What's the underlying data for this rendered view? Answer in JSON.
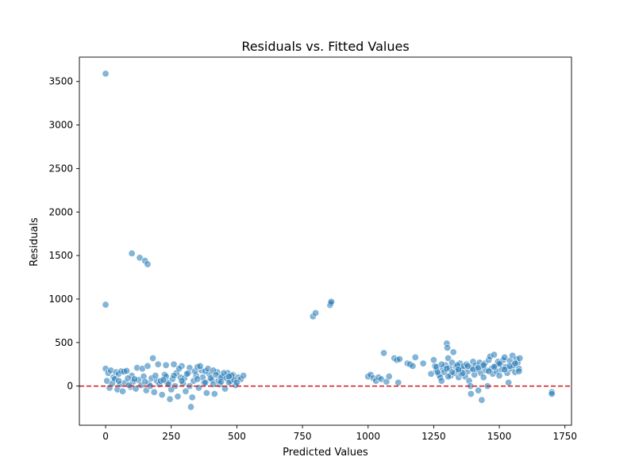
{
  "chart_data": {
    "type": "scatter",
    "title": "Residuals vs. Fitted Values",
    "xlabel": "Predicted Values",
    "ylabel": "Residuals",
    "xlim": [
      -100,
      1775
    ],
    "ylim": [
      -450,
      3780
    ],
    "x_ticks": [
      0,
      250,
      500,
      750,
      1000,
      1250,
      1500,
      1750
    ],
    "x_tick_labels": [
      "0",
      "250",
      "500",
      "750",
      "1000",
      "1250",
      "1500",
      "1750"
    ],
    "y_ticks": [
      0,
      500,
      1000,
      1500,
      2000,
      2500,
      3000,
      3500
    ],
    "y_tick_labels": [
      "0",
      "500",
      "1000",
      "1500",
      "2000",
      "2500",
      "3000",
      "3500"
    ],
    "grid": false,
    "legend": "none",
    "reference_line": {
      "y": 0,
      "style": "dashed",
      "color": "#d62728"
    },
    "marker_color": "#1f77b4",
    "marker_alpha": 0.55,
    "series": [
      {
        "name": "residuals",
        "points": [
          [
            0,
            3590
          ],
          [
            0,
            935
          ],
          [
            100,
            1525
          ],
          [
            130,
            1475
          ],
          [
            150,
            1440
          ],
          [
            160,
            1400
          ],
          [
            790,
            800
          ],
          [
            800,
            840
          ],
          [
            855,
            930
          ],
          [
            858,
            950
          ],
          [
            860,
            970
          ],
          [
            1700,
            -70
          ],
          [
            1700,
            -90
          ],
          [
            0,
            200
          ],
          [
            10,
            150
          ],
          [
            20,
            180
          ],
          [
            30,
            100
          ],
          [
            40,
            160
          ],
          [
            50,
            140
          ],
          [
            60,
            170
          ],
          [
            70,
            165
          ],
          [
            80,
            175
          ],
          [
            100,
            120
          ],
          [
            120,
            210
          ],
          [
            140,
            200
          ],
          [
            160,
            230
          ],
          [
            180,
            320
          ],
          [
            200,
            250
          ],
          [
            230,
            240
          ],
          [
            260,
            250
          ],
          [
            290,
            230
          ],
          [
            320,
            210
          ],
          [
            5,
            60
          ],
          [
            15,
            -20
          ],
          [
            25,
            30
          ],
          [
            35,
            80
          ],
          [
            45,
            -40
          ],
          [
            55,
            20
          ],
          [
            65,
            -60
          ],
          [
            75,
            40
          ],
          [
            85,
            90
          ],
          [
            95,
            -10
          ],
          [
            105,
            50
          ],
          [
            115,
            -30
          ],
          [
            125,
            70
          ],
          [
            135,
            10
          ],
          [
            145,
            110
          ],
          [
            155,
            -50
          ],
          [
            165,
            30
          ],
          [
            175,
            90
          ],
          [
            185,
            -70
          ],
          [
            195,
            60
          ],
          [
            205,
            20
          ],
          [
            215,
            -100
          ],
          [
            225,
            130
          ],
          [
            235,
            40
          ],
          [
            245,
            -150
          ],
          [
            255,
            80
          ],
          [
            265,
            0
          ],
          [
            275,
            -120
          ],
          [
            285,
            100
          ],
          [
            295,
            30
          ],
          [
            305,
            -60
          ],
          [
            315,
            150
          ],
          [
            325,
            -240
          ],
          [
            330,
            -130
          ],
          [
            335,
            60
          ],
          [
            345,
            120
          ],
          [
            355,
            -20
          ],
          [
            365,
            180
          ],
          [
            375,
            40
          ],
          [
            385,
            -80
          ],
          [
            395,
            140
          ],
          [
            405,
            70
          ],
          [
            415,
            -90
          ],
          [
            425,
            160
          ],
          [
            435,
            20
          ],
          [
            445,
            110
          ],
          [
            455,
            -30
          ],
          [
            465,
            150
          ],
          [
            475,
            60
          ],
          [
            485,
            130
          ],
          [
            495,
            10
          ],
          [
            505,
            100
          ],
          [
            515,
            80
          ],
          [
            525,
            120
          ],
          [
            210,
            60
          ],
          [
            230,
            110
          ],
          [
            250,
            -40
          ],
          [
            270,
            150
          ],
          [
            280,
            200
          ],
          [
            300,
            90
          ],
          [
            310,
            140
          ],
          [
            340,
            170
          ],
          [
            350,
            220
          ],
          [
            360,
            230
          ],
          [
            370,
            100
          ],
          [
            380,
            170
          ],
          [
            390,
            200
          ],
          [
            400,
            90
          ],
          [
            410,
            180
          ],
          [
            420,
            130
          ],
          [
            430,
            60
          ],
          [
            440,
            100
          ],
          [
            450,
            150
          ],
          [
            460,
            90
          ],
          [
            470,
            40
          ],
          [
            480,
            120
          ],
          [
            490,
            70
          ],
          [
            500,
            40
          ],
          [
            50,
            60
          ],
          [
            90,
            10
          ],
          [
            110,
            80
          ],
          [
            150,
            50
          ],
          [
            170,
            0
          ],
          [
            190,
            120
          ],
          [
            220,
            70
          ],
          [
            240,
            20
          ],
          [
            260,
            120
          ],
          [
            290,
            60
          ],
          [
            320,
            0
          ],
          [
            350,
            80
          ],
          [
            380,
            40
          ],
          [
            410,
            20
          ],
          [
            440,
            50
          ],
          [
            470,
            110
          ],
          [
            1000,
            110
          ],
          [
            1010,
            130
          ],
          [
            1020,
            90
          ],
          [
            1030,
            60
          ],
          [
            1040,
            100
          ],
          [
            1050,
            80
          ],
          [
            1060,
            380
          ],
          [
            1070,
            50
          ],
          [
            1080,
            110
          ],
          [
            1100,
            320
          ],
          [
            1110,
            300
          ],
          [
            1115,
            40
          ],
          [
            1120,
            310
          ],
          [
            1150,
            260
          ],
          [
            1160,
            250
          ],
          [
            1170,
            230
          ],
          [
            1180,
            330
          ],
          [
            1210,
            260
          ],
          [
            1240,
            140
          ],
          [
            1250,
            300
          ],
          [
            1255,
            230
          ],
          [
            1260,
            180
          ],
          [
            1270,
            130
          ],
          [
            1275,
            100
          ],
          [
            1280,
            60
          ],
          [
            1285,
            200
          ],
          [
            1290,
            160
          ],
          [
            1295,
            240
          ],
          [
            1300,
            490
          ],
          [
            1302,
            440
          ],
          [
            1305,
            320
          ],
          [
            1310,
            210
          ],
          [
            1315,
            120
          ],
          [
            1320,
            270
          ],
          [
            1325,
            390
          ],
          [
            1330,
            150
          ],
          [
            1335,
            220
          ],
          [
            1340,
            180
          ],
          [
            1345,
            100
          ],
          [
            1350,
            260
          ],
          [
            1355,
            140
          ],
          [
            1360,
            200
          ],
          [
            1365,
            230
          ],
          [
            1370,
            110
          ],
          [
            1375,
            250
          ],
          [
            1380,
            170
          ],
          [
            1385,
            60
          ],
          [
            1390,
            0
          ],
          [
            1392,
            -90
          ],
          [
            1395,
            210
          ],
          [
            1400,
            280
          ],
          [
            1405,
            130
          ],
          [
            1410,
            240
          ],
          [
            1415,
            190
          ],
          [
            1420,
            -50
          ],
          [
            1425,
            270
          ],
          [
            1430,
            150
          ],
          [
            1433,
            -160
          ],
          [
            1435,
            220
          ],
          [
            1440,
            100
          ],
          [
            1445,
            260
          ],
          [
            1450,
            180
          ],
          [
            1455,
            0
          ],
          [
            1460,
            300
          ],
          [
            1465,
            340
          ],
          [
            1470,
            200
          ],
          [
            1475,
            140
          ],
          [
            1480,
            360
          ],
          [
            1485,
            230
          ],
          [
            1490,
            170
          ],
          [
            1495,
            280
          ],
          [
            1500,
            120
          ],
          [
            1505,
            250
          ],
          [
            1510,
            190
          ],
          [
            1515,
            300
          ],
          [
            1520,
            330
          ],
          [
            1525,
            220
          ],
          [
            1530,
            150
          ],
          [
            1535,
            40
          ],
          [
            1540,
            290
          ],
          [
            1545,
            200
          ],
          [
            1550,
            350
          ],
          [
            1555,
            240
          ],
          [
            1560,
            160
          ],
          [
            1565,
            310
          ],
          [
            1570,
            270
          ],
          [
            1575,
            200
          ],
          [
            1578,
            320
          ],
          [
            1260,
            220
          ],
          [
            1280,
            250
          ],
          [
            1300,
            200
          ],
          [
            1320,
            160
          ],
          [
            1340,
            240
          ],
          [
            1360,
            150
          ],
          [
            1380,
            230
          ],
          [
            1400,
            190
          ],
          [
            1420,
            210
          ],
          [
            1440,
            240
          ],
          [
            1460,
            170
          ],
          [
            1480,
            220
          ],
          [
            1500,
            260
          ],
          [
            1520,
            190
          ],
          [
            1540,
            230
          ],
          [
            1560,
            260
          ],
          [
            1575,
            170
          ],
          [
            1265,
            160
          ],
          [
            1305,
            110
          ],
          [
            1345,
            190
          ]
        ]
      }
    ]
  }
}
